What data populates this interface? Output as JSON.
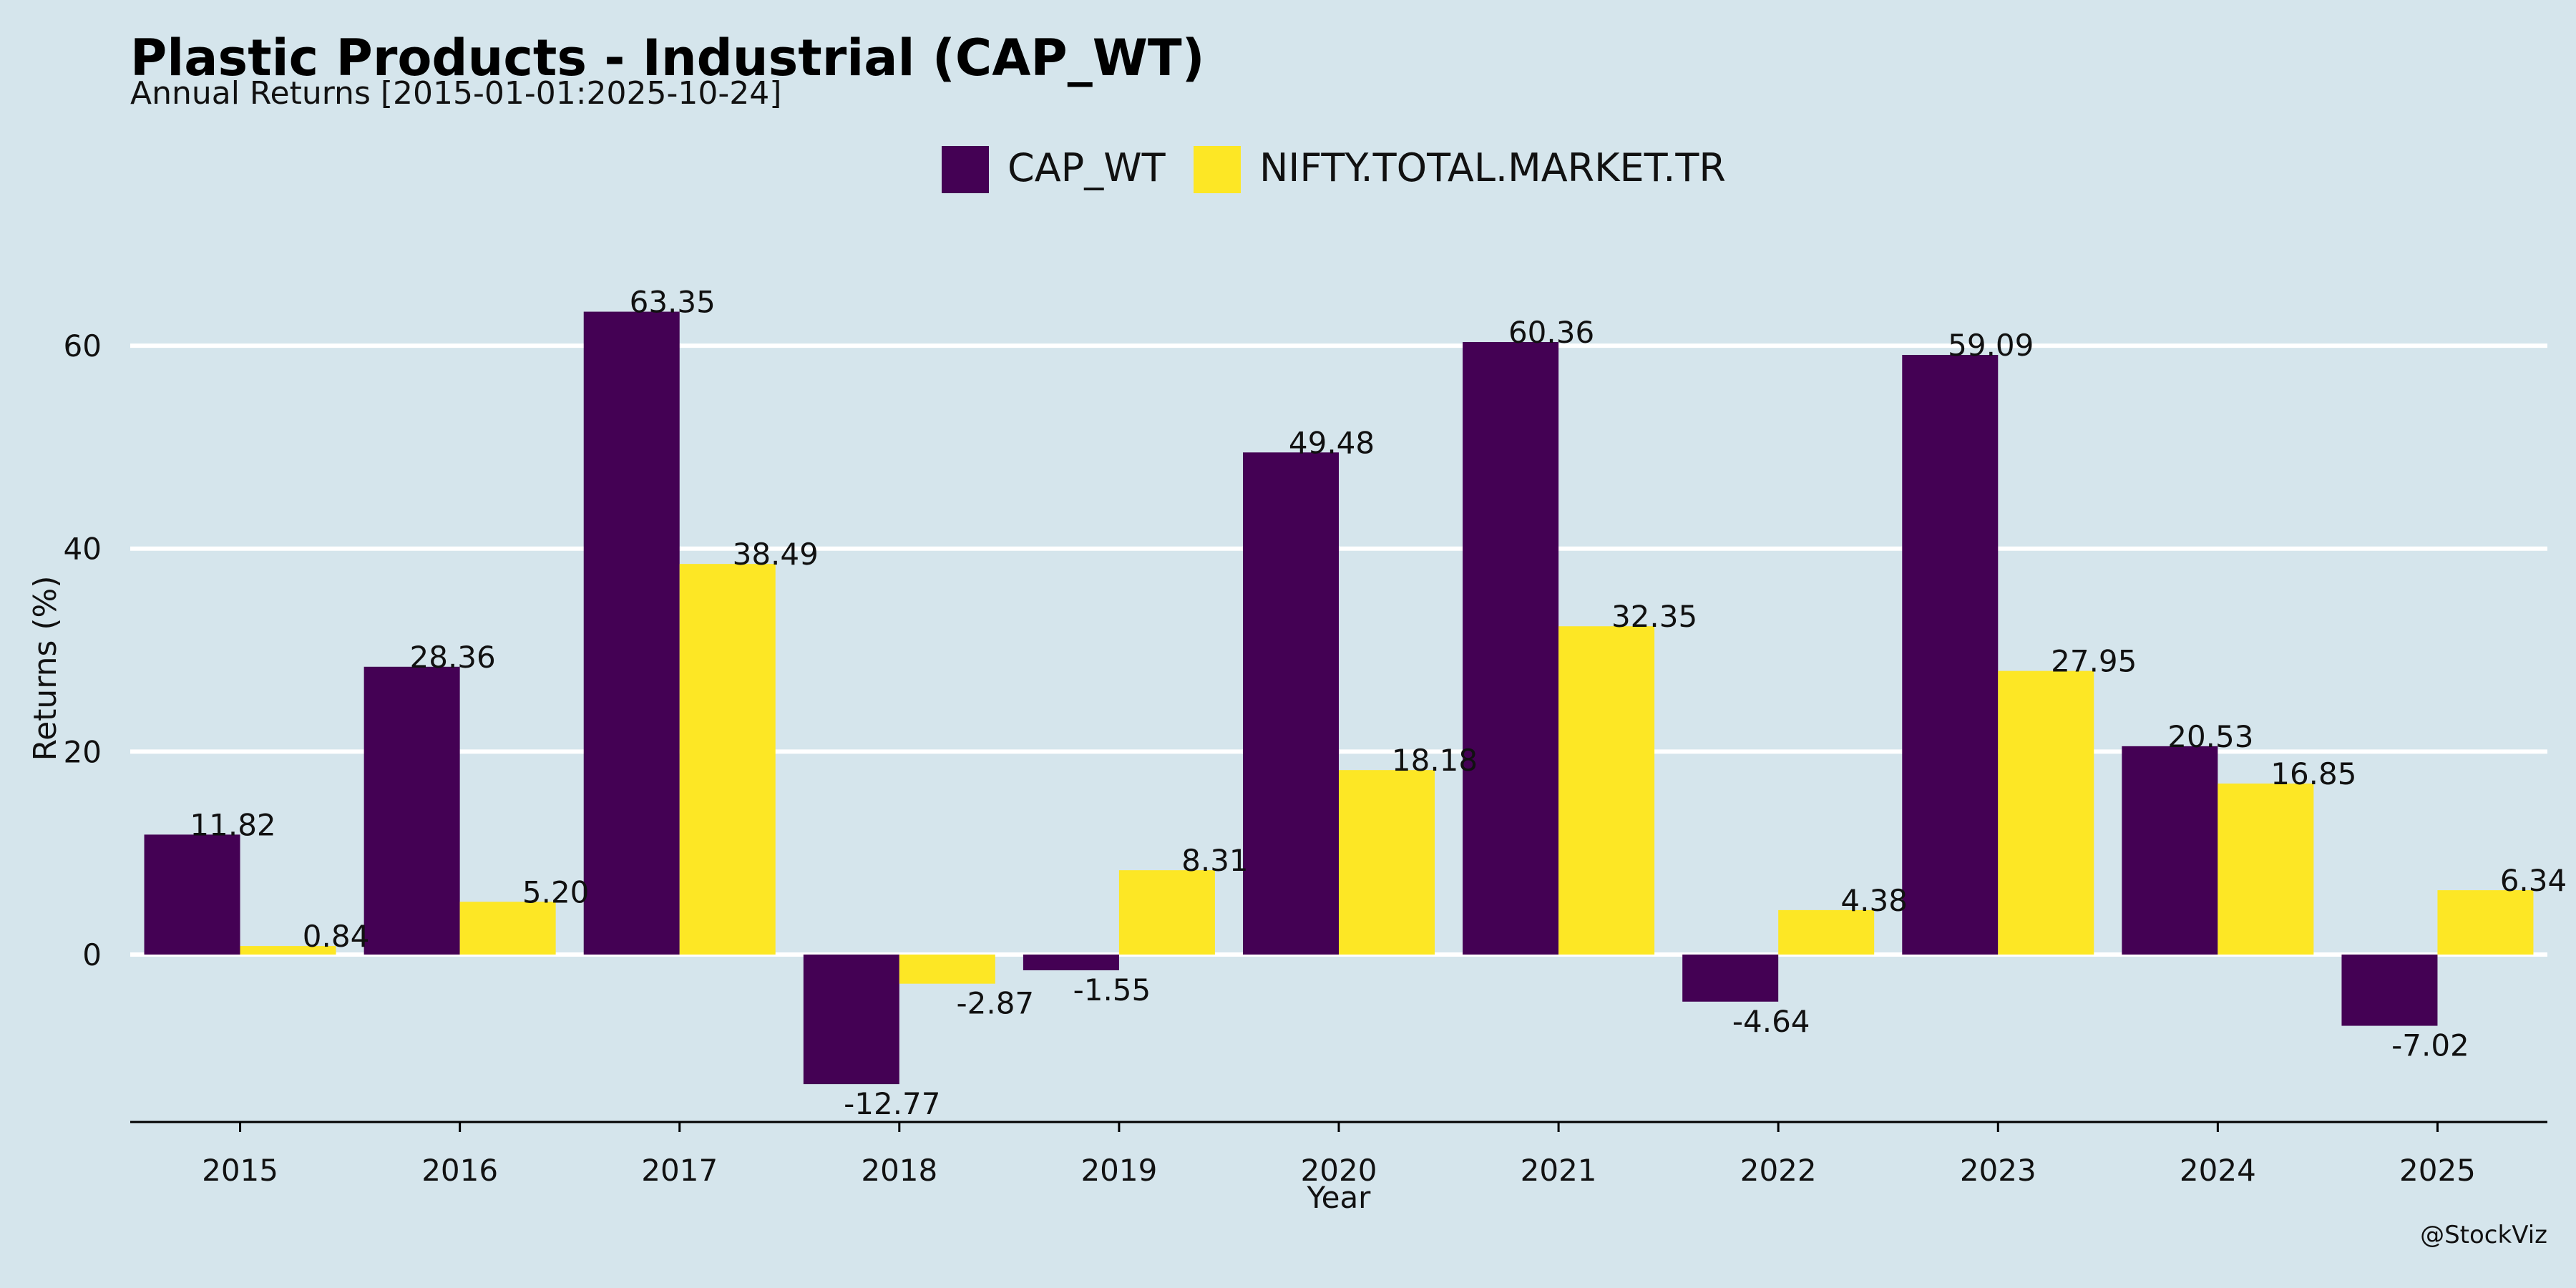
{
  "header": {
    "title": "Plastic Products - Industrial (CAP_WT)",
    "subtitle": "Annual Returns [2015-01-01:2025-10-24]"
  },
  "footer": {
    "watermark": "@StockViz"
  },
  "colors": {
    "background": "#d5e5ec",
    "series_1": "#440154",
    "series_2": "#fde725",
    "grid": "#ffffff",
    "axis": "#000000"
  },
  "chart_data": {
    "type": "bar",
    "title": "Plastic Products - Industrial (CAP_WT)",
    "subtitle": "Annual Returns [2015-01-01:2025-10-24]",
    "xlabel": "Year",
    "ylabel": "Returns (%)",
    "ylim": [
      -16.5,
      71.5
    ],
    "yticks": [
      0,
      20,
      40,
      60
    ],
    "grid": "y",
    "legend_position": "top-center",
    "categories": [
      "2015",
      "2016",
      "2017",
      "2018",
      "2019",
      "2020",
      "2021",
      "2022",
      "2023",
      "2024",
      "2025"
    ],
    "series": [
      {
        "name": "CAP_WT",
        "values": [
          11.82,
          28.36,
          63.35,
          -12.77,
          -1.55,
          49.48,
          60.36,
          -4.64,
          59.09,
          20.53,
          -7.02
        ],
        "labels": [
          "11.82",
          "28.36",
          "63.35",
          "-12.77",
          "-1.55",
          "49.48",
          "60.36",
          "-4.64",
          "59.09",
          "20.53",
          "-7.02"
        ]
      },
      {
        "name": "NIFTY.TOTAL.MARKET.TR",
        "values": [
          0.84,
          5.2,
          38.49,
          -2.87,
          8.31,
          18.18,
          32.35,
          4.38,
          27.95,
          16.85,
          6.34
        ],
        "labels": [
          "0.84",
          "5.20",
          "38.49",
          "-2.87",
          "8.31",
          "18.18",
          "32.35",
          "4.38",
          "27.95",
          "16.85",
          "6.34"
        ]
      }
    ]
  }
}
